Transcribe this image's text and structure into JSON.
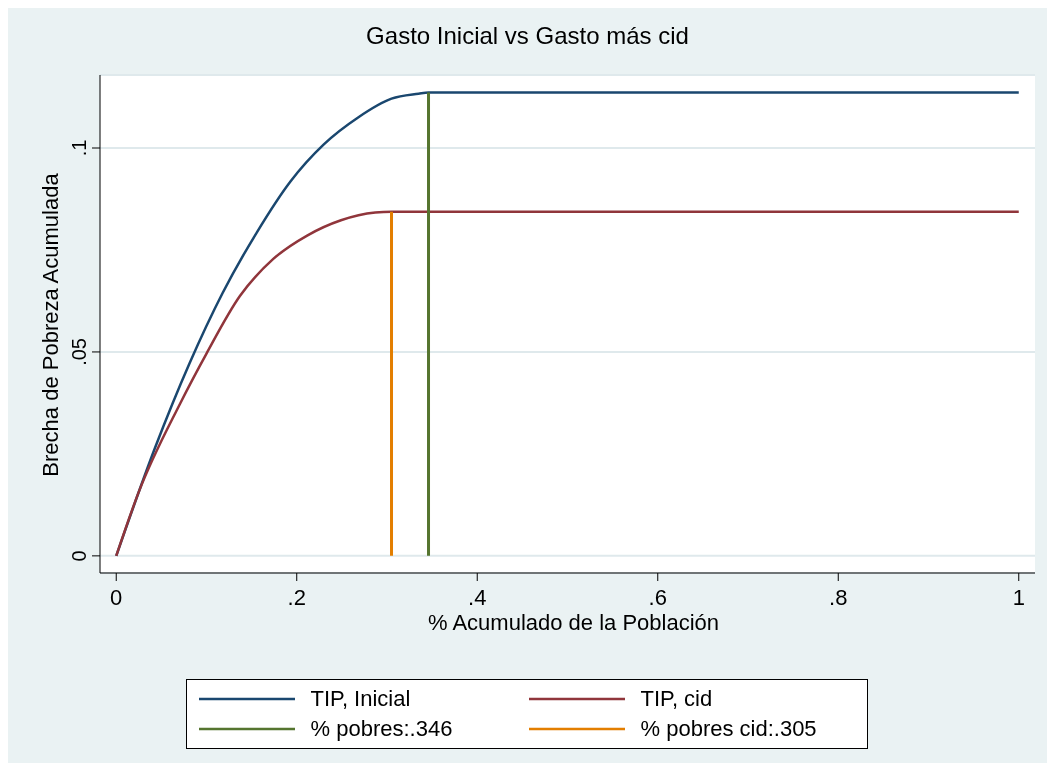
{
  "chart_data": {
    "type": "line",
    "title": "Gasto Inicial vs Gasto más cid",
    "xlabel": "% Acumulado de la Población",
    "ylabel": "Brecha de Pobreza Acumulada",
    "xlim": [
      -0.018,
      1.018
    ],
    "ylim": [
      -0.0042,
      0.1179
    ],
    "xticks": [
      0,
      {
        "value": 0.2,
        "label": ".2"
      },
      {
        "value": 0.4,
        "label": ".4"
      },
      {
        "value": 0.6,
        "label": ".6"
      },
      {
        "value": 0.8,
        "label": ".8"
      },
      1
    ],
    "yticks": [
      0,
      {
        "value": 0.05,
        "label": ".05"
      },
      {
        "value": 0.1,
        "label": ".1"
      }
    ],
    "grid": "y",
    "legend": "bottom",
    "marker": "none",
    "line_style": "solid",
    "series": [
      {
        "name": "TIP, Inicial",
        "color": "#1a476f",
        "x": [
          0,
          0.043,
          0.081,
          0.118,
          0.156,
          0.193,
          0.23,
          0.268,
          0.305,
          0.335,
          0.346,
          1
        ],
        "values": [
          0,
          0.0265,
          0.0471,
          0.0645,
          0.0794,
          0.0918,
          0.1009,
          0.1075,
          0.1121,
          0.1133,
          0.1136,
          0.1136
        ]
      },
      {
        "name": "TIP, cid",
        "color": "#90353b",
        "x": [
          0,
          0.025,
          0.07,
          0.1,
          0.137,
          0.174,
          0.212,
          0.249,
          0.287,
          0.305,
          1
        ],
        "values": [
          0,
          0.0157,
          0.037,
          0.0496,
          0.0637,
          0.0728,
          0.0786,
          0.0823,
          0.0842,
          0.0844,
          0.0844
        ]
      },
      {
        "name": "% pobres:.346",
        "color": "#55752f",
        "x": [
          0.346,
          0.346
        ],
        "values": [
          0,
          0.1136
        ]
      },
      {
        "name": "% pobres cid:.305",
        "color": "#e37e00",
        "x": [
          0.305,
          0.305
        ],
        "values": [
          0,
          0.0844
        ]
      }
    ]
  }
}
